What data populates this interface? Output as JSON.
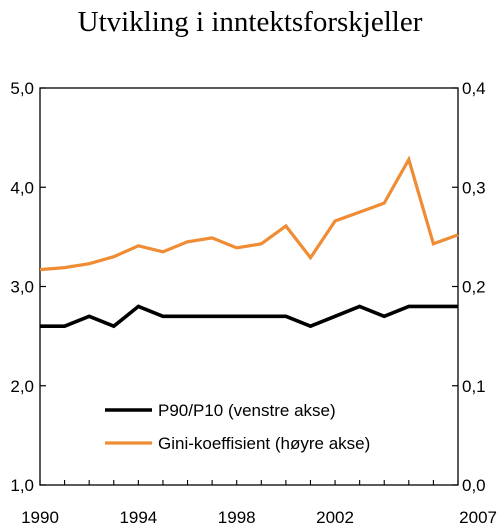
{
  "chart_data": {
    "type": "line",
    "title": "Utvikling i inntektsforskjeller",
    "x": [
      1990,
      1991,
      1992,
      1993,
      1994,
      1995,
      1996,
      1997,
      1998,
      1999,
      2000,
      2001,
      2002,
      2003,
      2004,
      2005,
      2006,
      2007
    ],
    "x_tick_labels": [
      "1990",
      "1994",
      "1998",
      "2002",
      "2007"
    ],
    "x_tick_values": [
      1990,
      1994,
      1998,
      2002,
      2007
    ],
    "left_axis": {
      "ylim": [
        1.0,
        5.0
      ],
      "tick_labels": [
        "1,0",
        "2,0",
        "3,0",
        "4,0",
        "5,0"
      ],
      "tick_values": [
        1.0,
        2.0,
        3.0,
        4.0,
        5.0
      ]
    },
    "right_axis": {
      "ylim": [
        0.0,
        0.4
      ],
      "tick_labels": [
        "0,0",
        "0,1",
        "0,2",
        "0,3",
        "0,4"
      ],
      "tick_values": [
        0.0,
        0.1,
        0.2,
        0.3,
        0.4
      ]
    },
    "series": [
      {
        "name": "P90/P10 (venstre akse)",
        "axis": "left",
        "color": "#000000",
        "values": [
          2.6,
          2.6,
          2.7,
          2.6,
          2.8,
          2.7,
          2.7,
          2.7,
          2.7,
          2.7,
          2.7,
          2.6,
          2.7,
          2.8,
          2.7,
          2.8,
          2.8,
          2.8
        ]
      },
      {
        "name": "Gini-koeffisient (høyre akse)",
        "axis": "right",
        "color": "#ef8c34",
        "values": [
          0.217,
          0.219,
          0.223,
          0.23,
          0.241,
          0.235,
          0.245,
          0.249,
          0.239,
          0.243,
          0.261,
          0.229,
          0.266,
          0.275,
          0.284,
          0.328,
          0.243,
          0.252
        ]
      }
    ],
    "legend_position": "bottom-center",
    "grid": false
  }
}
